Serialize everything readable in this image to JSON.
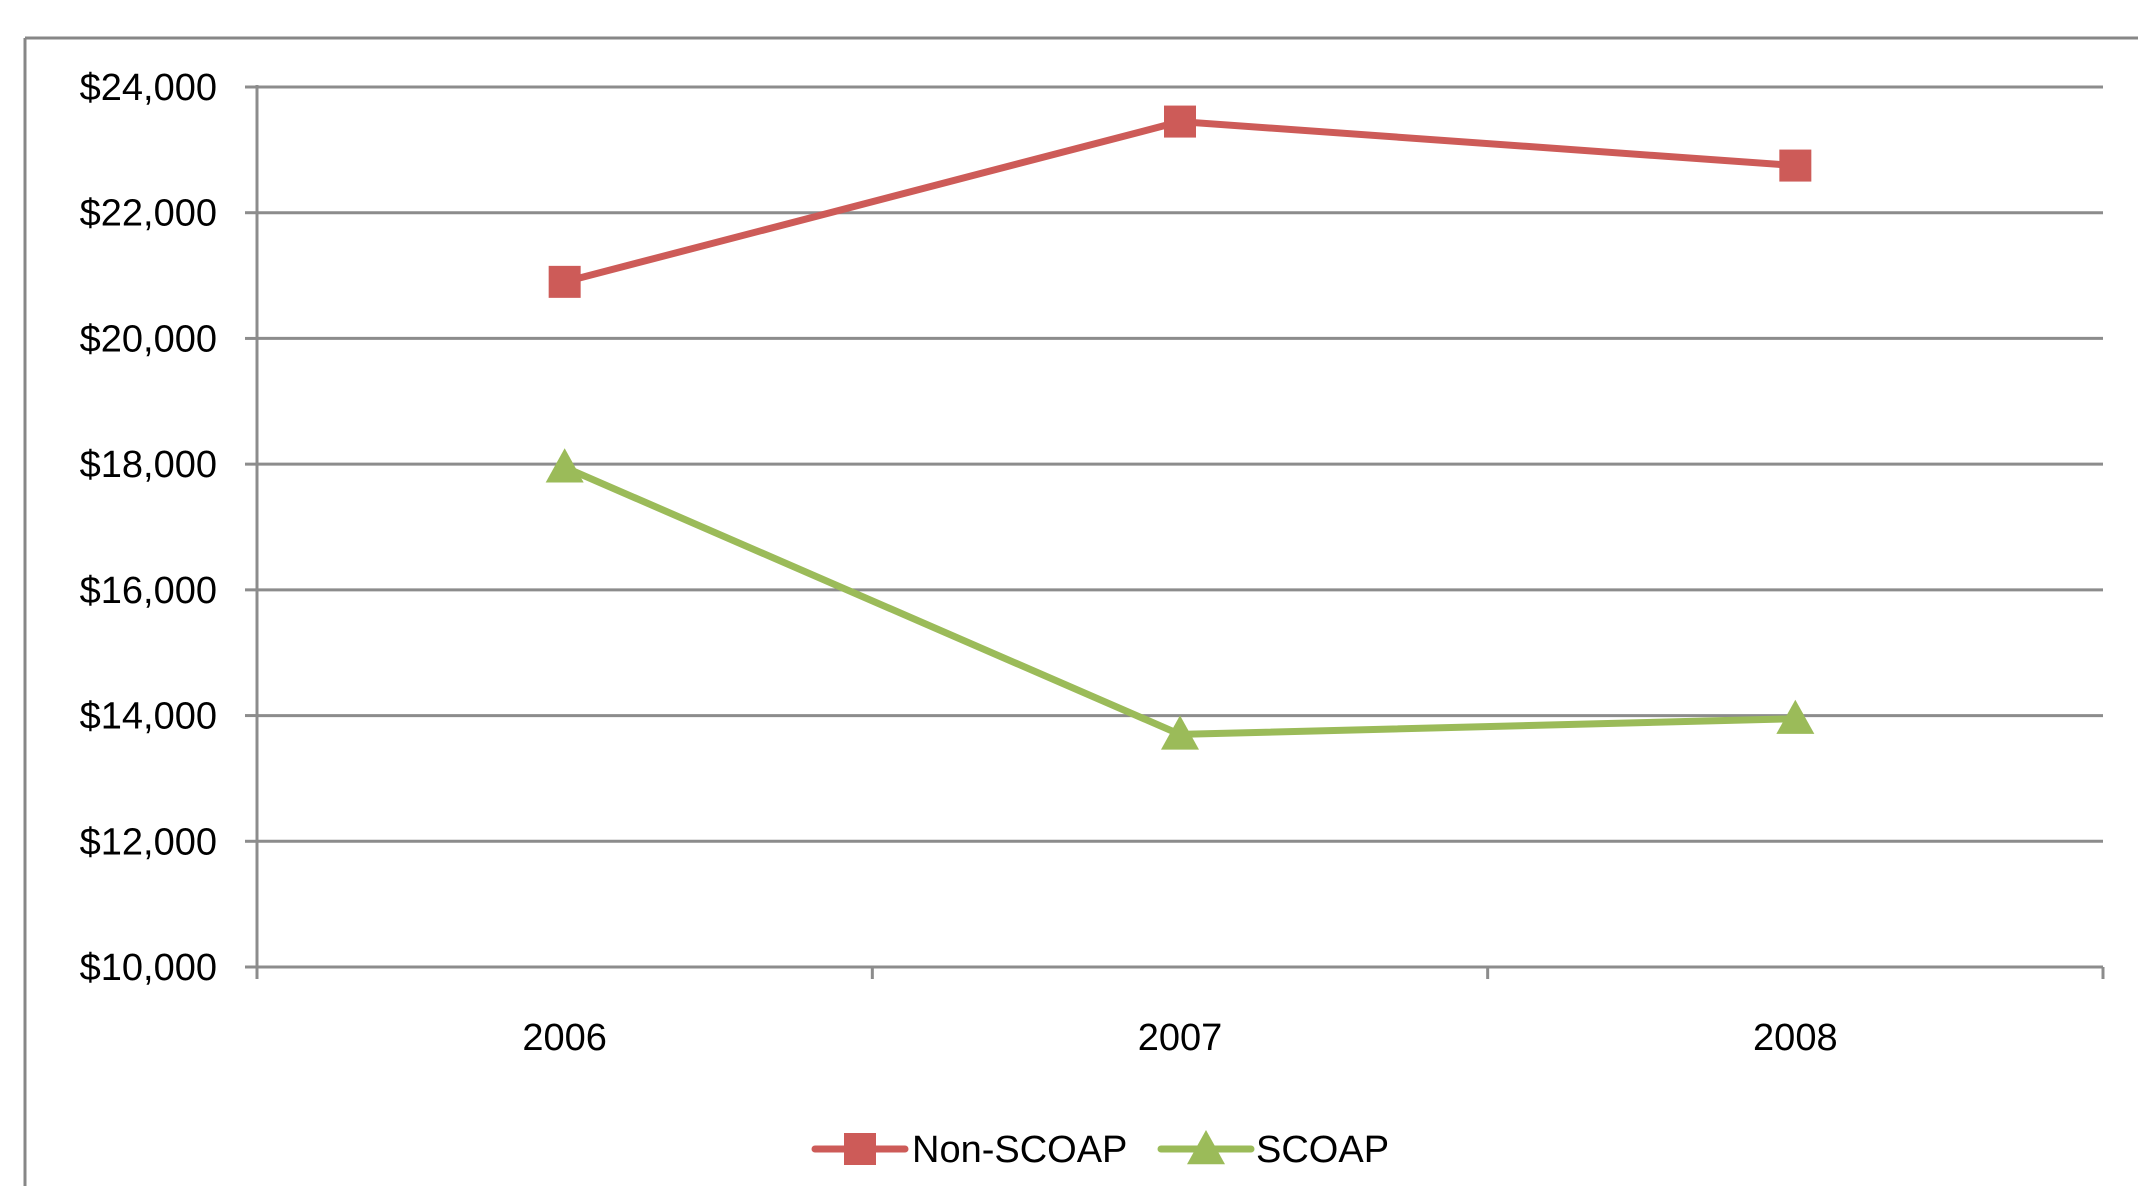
{
  "chart_data": {
    "type": "line",
    "title": "",
    "xlabel": "",
    "ylabel": "",
    "categories": [
      "2006",
      "2007",
      "2008"
    ],
    "ylim": [
      10000,
      24000
    ],
    "yticks": [
      10000,
      12000,
      14000,
      16000,
      18000,
      20000,
      22000,
      24000
    ],
    "ytick_labels": [
      "$10,000",
      "$12,000",
      "$14,000",
      "$16,000",
      "$18,000",
      "$20,000",
      "$22,000",
      "$24,000"
    ],
    "grid": true,
    "legend_position": "bottom",
    "series": [
      {
        "name": "Non-SCOAP",
        "values": [
          20900,
          23450,
          22750
        ],
        "color": "#cd5b58",
        "marker": "square"
      },
      {
        "name": "SCOAP",
        "values": [
          17950,
          13700,
          13950
        ],
        "color": "#9bbb59",
        "marker": "triangle"
      }
    ]
  }
}
